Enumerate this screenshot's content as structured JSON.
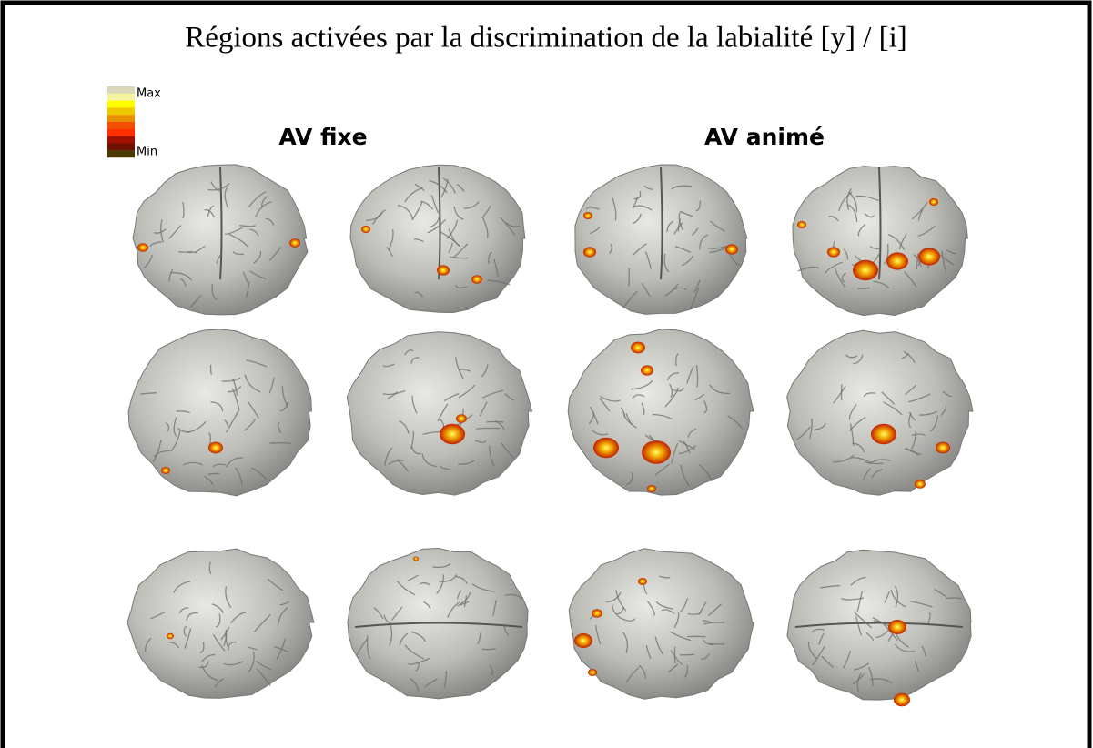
{
  "title": "Régions activées par la discrimination de la labialité [y] / [i]",
  "legend": {
    "max": "Max",
    "min": "Min"
  },
  "columns": [
    "AV fixe",
    "AV animé"
  ]
}
